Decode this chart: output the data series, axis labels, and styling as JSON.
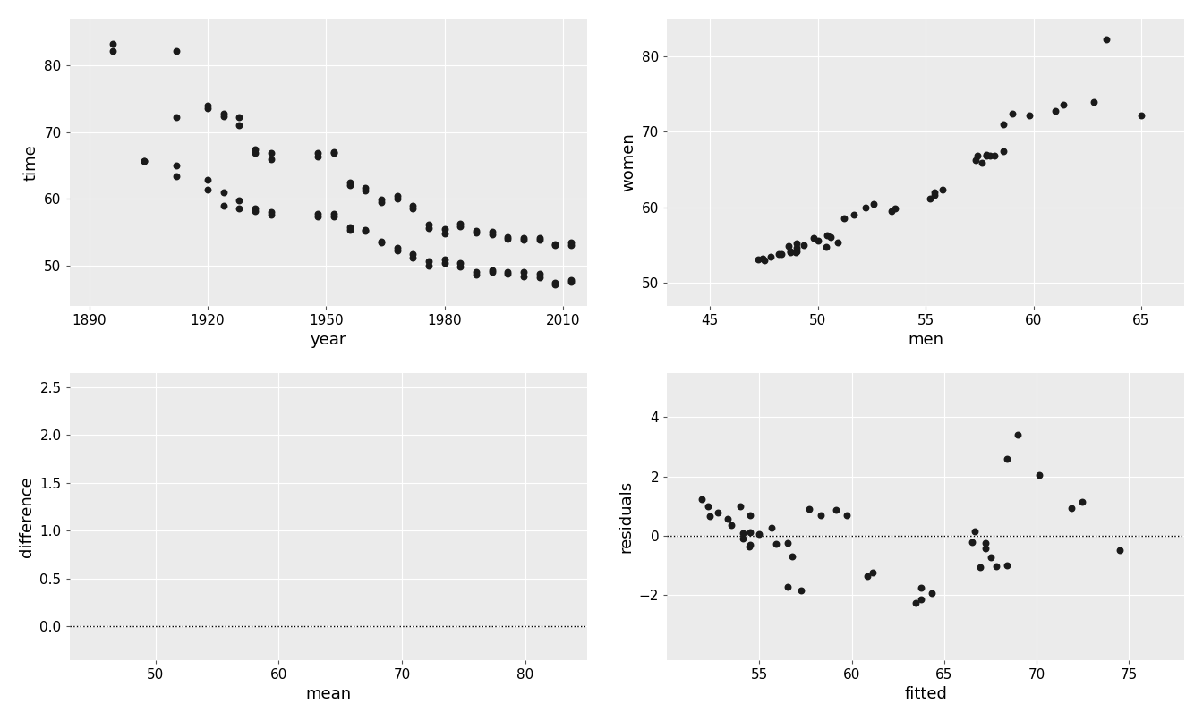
{
  "olympic_data": {
    "year": [
      1912,
      1920,
      1924,
      1928,
      1932,
      1936,
      1948,
      1952,
      1956,
      1960,
      1964,
      1968,
      1972,
      1976,
      1980,
      1984,
      1988,
      1992,
      1996,
      2000,
      2004,
      2008,
      2012
    ],
    "men_gold": [
      63.4,
      61.4,
      59.0,
      58.6,
      58.2,
      57.6,
      57.3,
      57.4,
      55.4,
      55.2,
      53.4,
      52.2,
      51.22,
      49.99,
      50.4,
      49.8,
      48.63,
      49.02,
      48.74,
      48.3,
      48.17,
      47.21,
      47.52
    ],
    "men_silver": [
      65.0,
      62.8,
      61.0,
      59.8,
      58.6,
      58.0,
      57.8,
      57.8,
      55.8,
      55.4,
      53.6,
      52.6,
      51.65,
      50.59,
      50.91,
      50.41,
      49.02,
      49.33,
      49.02,
      48.97,
      48.74,
      47.45,
      47.8
    ],
    "women_gold": [
      82.2,
      73.6,
      72.4,
      71.0,
      66.8,
      65.9,
      66.3,
      66.8,
      62.0,
      61.2,
      59.5,
      60.0,
      58.59,
      55.65,
      54.79,
      55.92,
      54.93,
      54.64,
      54.01,
      53.83,
      53.84,
      53.12,
      53.0
    ],
    "women_silver": [
      72.2,
      74.0,
      72.8,
      72.2,
      67.4,
      66.8,
      66.8,
      67.0,
      62.4,
      61.6,
      59.9,
      60.4,
      59.02,
      56.08,
      55.41,
      56.28,
      55.2,
      55.03,
      54.2,
      54.07,
      54.18,
      53.22,
      53.52
    ]
  },
  "men_early": {
    "year": [
      1896,
      1904
    ],
    "gold": [
      82.2,
      65.6
    ],
    "silver": [
      83.2,
      65.6
    ]
  },
  "bg_color": "#EBEBEB",
  "dot_color": "#1a1a1a",
  "grid_color": "#ffffff"
}
